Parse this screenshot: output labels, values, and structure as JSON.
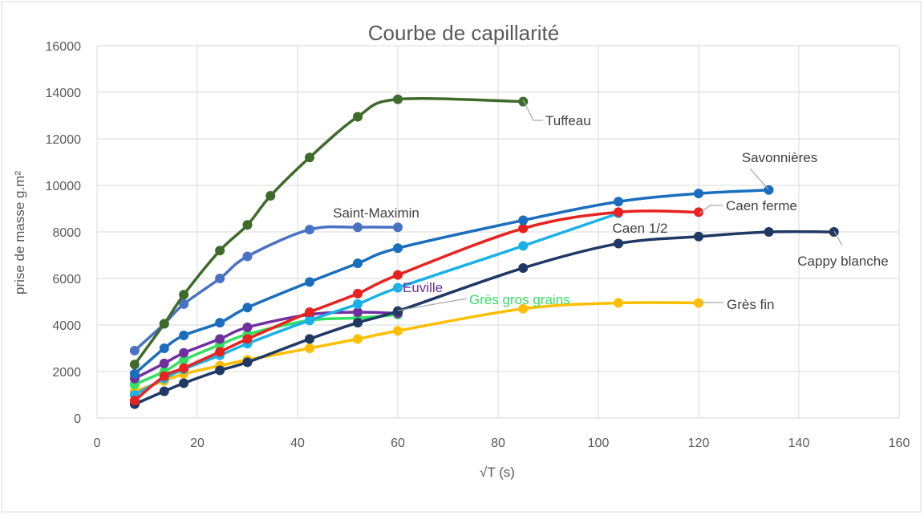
{
  "chart_data": {
    "type": "line",
    "title": "Courbe de capillarité",
    "xlabel": "√T  (s)",
    "ylabel": "prise de masse g.m²",
    "xlim": [
      0,
      160
    ],
    "ylim": [
      0,
      16000
    ],
    "x_ticks": [
      0,
      20,
      40,
      60,
      80,
      100,
      120,
      140,
      160
    ],
    "y_ticks": [
      0,
      2000,
      4000,
      6000,
      8000,
      10000,
      12000,
      14000,
      16000
    ],
    "grid": true,
    "legend": "none",
    "series": [
      {
        "name": "Tuffeau",
        "color": "#3f6b2a",
        "x": [
          7.5,
          13.4,
          17.3,
          24.5,
          30,
          34.6,
          42.4,
          52,
          60,
          85
        ],
        "y": [
          2300,
          4050,
          5300,
          7200,
          8300,
          9550,
          11200,
          12950,
          13700,
          13600
        ]
      },
      {
        "name": "Saint-Maximin",
        "color": "#4a72c4",
        "x": [
          7.5,
          13.4,
          17.3,
          24.5,
          30,
          42.4,
          52,
          60
        ],
        "y": [
          2900,
          4050,
          4900,
          6000,
          6950,
          8100,
          8200,
          8200
        ]
      },
      {
        "name": "Savonnières",
        "color": "#1a6ebd",
        "x": [
          7.5,
          13.4,
          17.3,
          24.5,
          30,
          42.4,
          52,
          60,
          85,
          104,
          120,
          134
        ],
        "y": [
          1900,
          3000,
          3550,
          4100,
          4750,
          5850,
          6650,
          7300,
          8500,
          9300,
          9650,
          9800
        ]
      },
      {
        "name": "Caen ferme",
        "color": "#e8221f",
        "x": [
          7.5,
          13.4,
          17.3,
          24.5,
          30,
          42.4,
          52,
          60,
          85,
          104,
          120
        ],
        "y": [
          750,
          1800,
          2150,
          2850,
          3400,
          4550,
          5350,
          6150,
          8150,
          8850,
          8850
        ]
      },
      {
        "name": "Caen 1/2",
        "color": "#1ab0e8",
        "x": [
          7.5,
          13.4,
          17.3,
          24.5,
          30,
          42.4,
          52,
          60,
          85,
          104
        ],
        "y": [
          1000,
          1700,
          2100,
          2700,
          3200,
          4200,
          4900,
          5600,
          7400,
          8800
        ]
      },
      {
        "name": "Cappy blanche",
        "color": "#1f3864",
        "x": [
          7.5,
          13.4,
          17.3,
          24.5,
          30,
          42.4,
          52,
          60,
          85,
          104,
          120,
          134,
          147
        ],
        "y": [
          600,
          1150,
          1500,
          2050,
          2400,
          3400,
          4100,
          4600,
          6450,
          7500,
          7800,
          8000,
          8000
        ]
      },
      {
        "name": "Euville",
        "color": "#7030a0",
        "x": [
          7.5,
          13.4,
          17.3,
          24.5,
          30,
          42.4,
          52,
          60
        ],
        "y": [
          1700,
          2350,
          2800,
          3400,
          3900,
          4450,
          4550,
          4500
        ]
      },
      {
        "name": "Grès gros grains",
        "color": "#33e060",
        "x": [
          7.5,
          13.4,
          17.3,
          24.5,
          30,
          42.4,
          52,
          60
        ],
        "y": [
          1450,
          2000,
          2500,
          3150,
          3600,
          4200,
          4300,
          4450
        ]
      },
      {
        "name": "Grès fin",
        "color": "#ffbf00",
        "x": [
          7.5,
          13.4,
          17.3,
          24.5,
          30,
          42.4,
          52,
          60,
          85,
          104,
          120
        ],
        "y": [
          1150,
          1600,
          1900,
          2250,
          2500,
          3000,
          3400,
          3750,
          4700,
          4950,
          4950
        ]
      }
    ]
  }
}
